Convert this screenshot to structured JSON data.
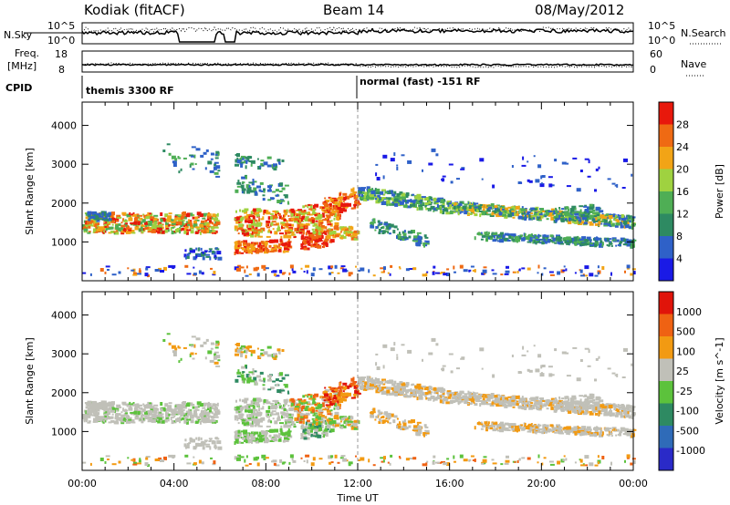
{
  "header": {
    "station": "Kodiak (fitACF)",
    "beam": "Beam 14",
    "date": "08/May/2012"
  },
  "strips": {
    "left_nsky": "N.Sky",
    "left_freq_line1": "Freq.",
    "left_freq_line2": "[MHz]",
    "left_cpid": "CPID",
    "right_nsearch": "N.Search",
    "right_nave": "Nave",
    "nsky_ticks": [
      "10^5",
      "10^0"
    ],
    "nsearch_ticks": [
      "10^5",
      "10^0"
    ],
    "freq_ticks": [
      "18",
      "8"
    ],
    "nave_ticks": [
      "60",
      "0"
    ],
    "cpid_labels": [
      {
        "text": "themis 3300 RF",
        "start_hour": 0
      },
      {
        "text": "normal (fast) -151 RF",
        "start_hour": 12
      }
    ]
  },
  "chart_data": {
    "type": "heatmap",
    "x_axis": {
      "label": "Time UT",
      "range_hours": [
        0,
        24
      ],
      "tick_hours": [
        0,
        4,
        8,
        12,
        16,
        20,
        24
      ],
      "tick_labels": [
        "00:00",
        "04:00",
        "08:00",
        "12:00",
        "16:00",
        "20:00",
        "00:00"
      ]
    },
    "data_gap_hours": [
      5.9,
      6.6
    ],
    "panels": [
      {
        "name": "power",
        "ylabel": "Slant Range [km]",
        "yrange": [
          0,
          4600
        ],
        "yticks": [
          1000,
          2000,
          3000,
          4000
        ],
        "colorbar": {
          "label": "Power [dB]",
          "ticks": [
            "4",
            "8",
            "12",
            "16",
            "20",
            "24",
            "28"
          ],
          "colors": [
            "#1a1ae6",
            "#2f61c8",
            "#2e8a62",
            "#4fae55",
            "#9fd240",
            "#f2a416",
            "#ef6a13",
            "#e8180c"
          ]
        }
      },
      {
        "name": "velocity",
        "ylabel": "Slant Range [km]",
        "yrange": [
          0,
          4600
        ],
        "yticks": [
          1000,
          2000,
          3000,
          4000
        ],
        "colorbar": {
          "label": "Velocity [m s^-1]",
          "ticks": [
            "1000",
            "500",
            "100",
            "25",
            "-25",
            "-100",
            "-500",
            "-1000"
          ],
          "colors": [
            "#2a2ac8",
            "#2f6bb8",
            "#2e8a62",
            "#5cc23c",
            "#c0c0b8",
            "#f29a12",
            "#ef6213",
            "#e0140a"
          ]
        }
      }
    ]
  }
}
